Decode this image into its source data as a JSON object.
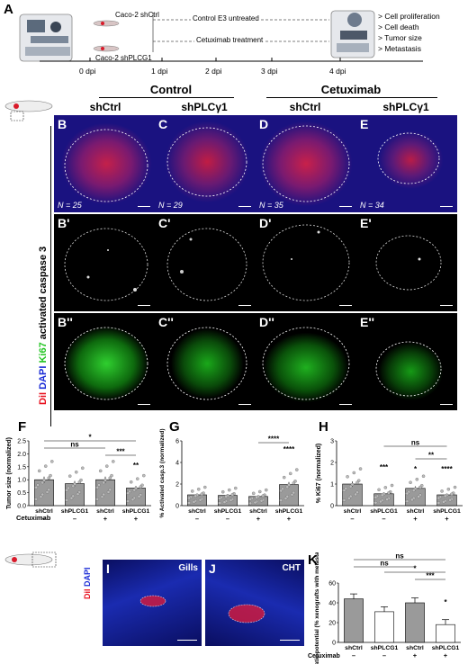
{
  "panels": {
    "A": "A",
    "B": "B",
    "C": "C",
    "D": "D",
    "E": "E",
    "B1": "B'",
    "C1": "C'",
    "D1": "D'",
    "E1": "E'",
    "B2": "B''",
    "C2": "C''",
    "D2": "D''",
    "E2": "E''",
    "F": "F",
    "G": "G",
    "H": "H",
    "I": "I",
    "J": "J",
    "K": "K"
  },
  "timeline": {
    "cell1": "Caco-2 shCtrl",
    "cell2": "Caco-2 shPLCG1",
    "line1": "Control E3 untreated",
    "line2": "Cetuximab treatment",
    "days": [
      "0 dpi",
      "1 dpi",
      "2 dpi",
      "3 dpi",
      "4 dpi"
    ],
    "outcomes": [
      "> Cell proliferation",
      "> Cell death",
      "> Tumor size",
      "> Metastasis"
    ]
  },
  "groups": {
    "control": "Control",
    "cetuximab": "Cetuximab",
    "shctrl": "shCtrl",
    "shplc": "shPLCγ1"
  },
  "stain": {
    "dil": "DiI",
    "dapi": "DAPI",
    "ki67": "Ki67",
    "casp": "activated caspase 3"
  },
  "n_values": [
    "N = 25",
    "N = 29",
    "N = 35",
    "N = 34"
  ],
  "location": {
    "gills": "Gills",
    "cht": "CHT"
  },
  "colors": {
    "red": "#e8101e",
    "blue": "#1a2bd6",
    "green": "#22d422",
    "bar_gray": "#9a9a9a"
  },
  "axis": {
    "cetuximab": "Cetuximab",
    "xcats": [
      "shCtrl",
      "shPLCG1",
      "shCtrl",
      "shPLCG1"
    ],
    "signs": [
      "–",
      "–",
      "+",
      "+"
    ]
  },
  "chart_data": [
    {
      "id": "F",
      "type": "bar",
      "ylabel": "Tumor size (normalized)",
      "ylim": [
        0,
        2.5
      ],
      "yticks": [
        "0.0",
        "0.5",
        "1.0",
        "1.5",
        "2.0",
        "2.5"
      ],
      "categories": [
        "shCtrl",
        "shPLCG1",
        "shCtrl",
        "shPLCG1"
      ],
      "values": [
        1.0,
        0.85,
        1.0,
        0.68
      ],
      "sig": {
        "ns": "ns",
        "s1": "*",
        "s2": "***",
        "s3": "**"
      }
    },
    {
      "id": "G",
      "type": "bar",
      "ylabel": "% Activated casp.3 (normalized)",
      "ylim": [
        0,
        6
      ],
      "yticks": [
        "0",
        "2",
        "4",
        "6"
      ],
      "categories": [
        "shCtrl",
        "shPLCG1",
        "shCtrl",
        "shPLCG1"
      ],
      "values": [
        1.0,
        0.95,
        0.85,
        1.95
      ],
      "sig": {
        "s1": "****",
        "s2": "****"
      }
    },
    {
      "id": "H",
      "type": "bar",
      "ylabel": "% Ki67 (normalized)",
      "ylim": [
        0,
        3
      ],
      "yticks": [
        "0",
        "1",
        "2",
        "3"
      ],
      "categories": [
        "shCtrl",
        "shPLCG1",
        "shCtrl",
        "shPLCG1"
      ],
      "values": [
        1.0,
        0.55,
        0.8,
        0.5
      ],
      "sig": {
        "ns": "ns",
        "s1": "***",
        "s2": "*",
        "s3": "**",
        "s4": "****"
      }
    },
    {
      "id": "K",
      "type": "bar",
      "ylabel": "Metastatic potential (% xenografts with metastasis)",
      "ylim": [
        0,
        60
      ],
      "yticks": [
        "0",
        "20",
        "40",
        "60"
      ],
      "categories": [
        "shCtrl",
        "shPLCG1",
        "shCtrl",
        "shPLCG1"
      ],
      "values": [
        44,
        31,
        40,
        18
      ],
      "errors": [
        5,
        5,
        5,
        5
      ],
      "sig": {
        "ns1": "ns",
        "ns2": "ns",
        "s1": "*",
        "s2": "***",
        "s3": "*"
      }
    }
  ]
}
